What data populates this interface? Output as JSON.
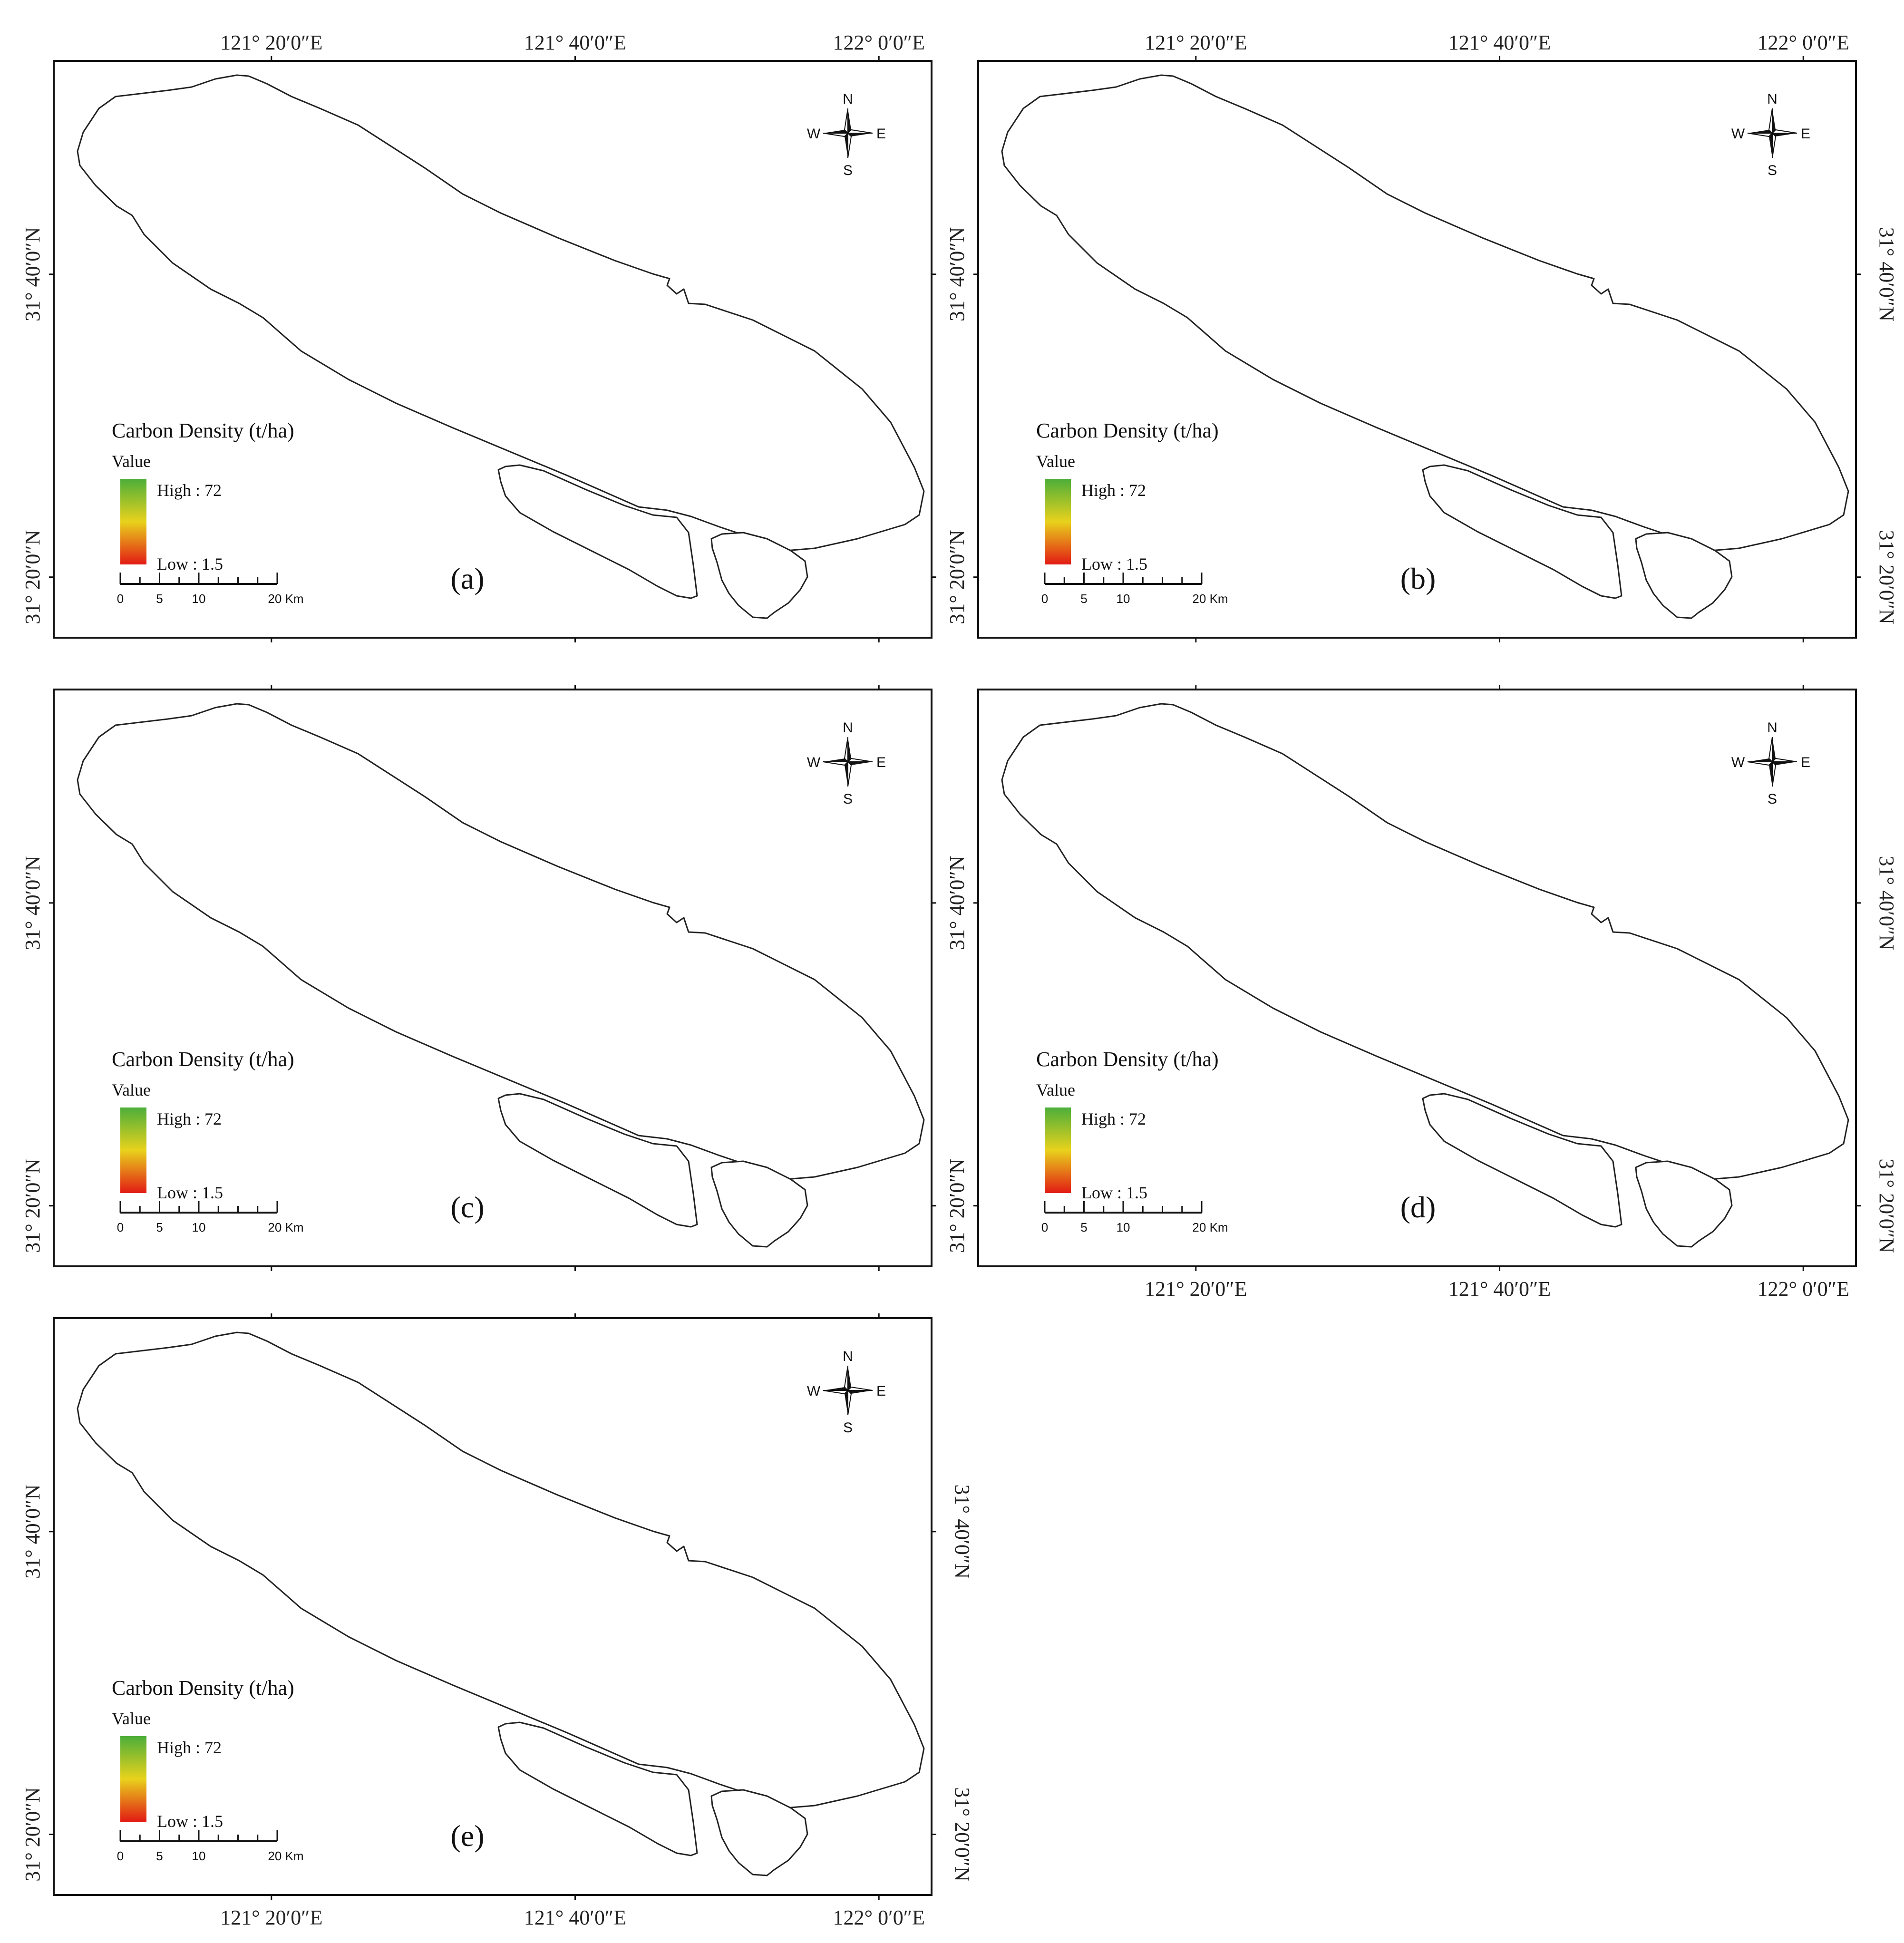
{
  "figure": {
    "lon_labels": [
      "121° 20′0″E",
      "121° 40′0″E",
      "122° 0′0″E"
    ],
    "lat_labels": [
      "31° 40′0″N",
      "31° 20′0″N"
    ],
    "legend": {
      "title": "Carbon Density (t/ha)",
      "subtitle": "Value",
      "high_label": "High : 72",
      "low_label": "Low : 1.5",
      "high": 72,
      "low": 1.5,
      "colors": {
        "high": "#4cae3a",
        "mid": "#e8d21c",
        "low": "#e21b14"
      }
    },
    "scale_bar": {
      "ticks": [
        "0",
        "5",
        "10",
        "20 Km"
      ]
    },
    "compass": {
      "north": "N",
      "south": "S",
      "east": "E",
      "west": "W"
    },
    "panels": [
      {
        "label": "(a)"
      },
      {
        "label": "(b)"
      },
      {
        "label": "(c)"
      },
      {
        "label": "(d)"
      },
      {
        "label": "(e)"
      }
    ]
  }
}
